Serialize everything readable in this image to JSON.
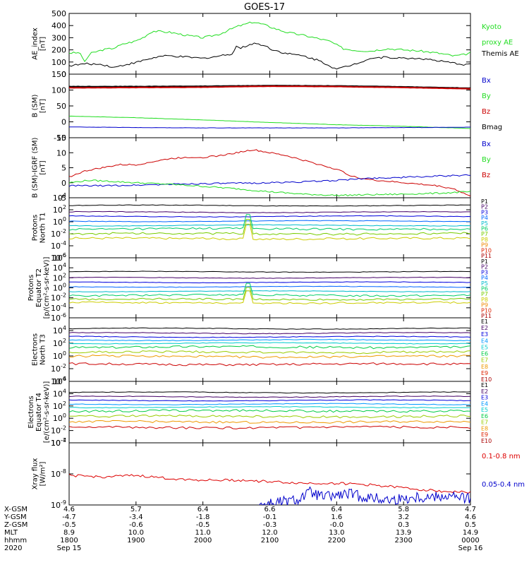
{
  "title": "GOES-17",
  "x_axis": {
    "rows": [
      {
        "label": "X-GSM",
        "values": [
          "4.6",
          "5.7",
          "6.4",
          "6.6",
          "6.4",
          "5.8",
          "4.7"
        ]
      },
      {
        "label": "Y-GSM",
        "values": [
          "-4.7",
          "-3.4",
          "-1.8",
          "-0.1",
          "1.6",
          "3.2",
          "4.6"
        ]
      },
      {
        "label": "Z-GSM",
        "values": [
          "-0.5",
          "-0.6",
          "-0.5",
          "-0.3",
          "-0.0",
          "0.3",
          "0.5"
        ]
      },
      {
        "label": "MLT",
        "values": [
          "8.9",
          "10.0",
          "11.0",
          "12.0",
          "13.0",
          "13.9",
          "14.9"
        ]
      },
      {
        "label": "hhmm",
        "values": [
          "1800",
          "1900",
          "2000",
          "2100",
          "2200",
          "2300",
          "0000"
        ]
      },
      {
        "label": "2020",
        "values": [
          "Sep 15",
          "",
          "",
          "",
          "",
          "",
          "Sep 16"
        ]
      }
    ]
  },
  "panels": [
    {
      "id": "ae",
      "ylabel": [
        "AE_index",
        "[nT]"
      ],
      "scale": "linear",
      "ylim": [
        0,
        500
      ],
      "ticks": [
        "0",
        "100",
        "200",
        "300",
        "400",
        "500"
      ],
      "tick_values": [
        0,
        100,
        200,
        300,
        400,
        500
      ],
      "legend": [
        {
          "text": "Kyoto",
          "color": "#22dd22"
        },
        {
          "text": "proxy AE",
          "color": "#22dd22"
        },
        {
          "text": "Themis AE",
          "color": "#000000"
        }
      ],
      "series": [
        {
          "name": "Kyoto proxy AE",
          "color": "#22dd22",
          "x": [
            0,
            0.14,
            0.17,
            0.22,
            0.32,
            0.5,
            0.67,
            0.82,
            0.98,
            1.1,
            1.25,
            1.5,
            1.75,
            2.0,
            2.25,
            2.5,
            2.75,
            2.9,
            3.05,
            3.25,
            3.5,
            3.75,
            3.9,
            4.1,
            4.3,
            4.5,
            4.75,
            5.0,
            5.25,
            5.5,
            5.75,
            5.9,
            6.0
          ],
          "y": [
            175,
            175,
            175,
            95,
            170,
            200,
            215,
            250,
            270,
            300,
            355,
            345,
            320,
            300,
            330,
            390,
            430,
            410,
            380,
            345,
            320,
            290,
            270,
            210,
            195,
            190,
            210,
            200,
            190,
            175,
            150,
            160,
            175
          ]
        },
        {
          "name": "Themis AE",
          "color": "#000000",
          "x": [
            0,
            0.25,
            0.5,
            0.67,
            0.85,
            1.0,
            1.15,
            1.35,
            1.5,
            1.75,
            2.0,
            2.25,
            2.45,
            2.5,
            2.55,
            2.75,
            2.9,
            3.05,
            3.25,
            3.5,
            3.75,
            4.0,
            4.25,
            4.5,
            4.75,
            5.0,
            5.25,
            5.5,
            5.75,
            5.9,
            6.0
          ],
          "y": [
            70,
            85,
            80,
            55,
            80,
            95,
            120,
            145,
            150,
            140,
            130,
            150,
            170,
            235,
            210,
            255,
            240,
            200,
            170,
            150,
            110,
            40,
            80,
            130,
            140,
            130,
            130,
            110,
            90,
            80,
            85
          ]
        }
      ]
    },
    {
      "id": "bsm",
      "ylabel": [
        "B (SM)",
        "[nT]"
      ],
      "scale": "linear",
      "ylim": [
        -50,
        150
      ],
      "ticks": [
        "-50",
        "0",
        "50",
        "100",
        "150"
      ],
      "tick_values": [
        -50,
        0,
        50,
        100,
        150
      ],
      "legend": [
        {
          "text": "Bx",
          "color": "#0000cc"
        },
        {
          "text": "By",
          "color": "#22dd22"
        },
        {
          "text": "Bz",
          "color": "#cc0000"
        },
        {
          "text": "Bmag",
          "color": "#000000"
        }
      ],
      "series": [
        {
          "name": "Bmag",
          "color": "#000000",
          "x": [
            0,
            1,
            2,
            3,
            4,
            5,
            6
          ],
          "y": [
            111,
            111,
            112,
            114,
            113,
            110,
            106
          ]
        },
        {
          "name": "Bz",
          "color": "#cc0000",
          "x": [
            0,
            1,
            2,
            3,
            4,
            5,
            6
          ],
          "y": [
            107,
            108,
            109,
            112,
            111,
            108,
            104
          ]
        },
        {
          "name": "By",
          "color": "#22dd22",
          "x": [
            0,
            1,
            2,
            3,
            4,
            5,
            6
          ],
          "y": [
            18,
            13,
            6,
            -2,
            -9,
            -14,
            -21
          ]
        },
        {
          "name": "Bx",
          "color": "#0000cc",
          "x": [
            0,
            1,
            2,
            3,
            4,
            5,
            6
          ],
          "y": [
            -16,
            -18,
            -19,
            -19,
            -19,
            -18,
            -17
          ]
        }
      ]
    },
    {
      "id": "dbsm",
      "ylabel": [
        "B (SM)-IGRF (SM)",
        "[nT]"
      ],
      "scale": "linear",
      "ylim": [
        -5,
        15
      ],
      "ticks": [
        "-5",
        "0",
        "5",
        "10",
        "15"
      ],
      "tick_values": [
        -5,
        0,
        5,
        10,
        15
      ],
      "legend": [
        {
          "text": "Bx",
          "color": "#0000cc"
        },
        {
          "text": "By",
          "color": "#22dd22"
        },
        {
          "text": "Bz",
          "color": "#cc0000"
        }
      ],
      "series": [
        {
          "name": "Bz",
          "color": "#cc0000",
          "x": [
            0,
            0.25,
            0.5,
            0.75,
            1.0,
            1.25,
            1.5,
            1.75,
            2.0,
            2.25,
            2.5,
            2.75,
            3.0,
            3.25,
            3.5,
            3.75,
            4.0,
            4.25,
            4.5,
            4.75,
            5.0,
            5.25,
            5.5,
            5.75,
            6.0
          ],
          "y": [
            2,
            4,
            5,
            6,
            6,
            7,
            8,
            8.5,
            8.5,
            9,
            10,
            11,
            10,
            9,
            7.5,
            6,
            4.5,
            2,
            1,
            0.5,
            0,
            -0.5,
            -1,
            -2,
            -4.5
          ]
        },
        {
          "name": "Bx",
          "color": "#0000cc",
          "x": [
            0,
            0.5,
            1,
            1.5,
            2,
            2.5,
            3,
            3.5,
            4,
            4.5,
            5,
            5.5,
            6
          ],
          "y": [
            -1,
            -1,
            -0.8,
            -0.5,
            -0.3,
            -0.2,
            0,
            0.3,
            0.8,
            1.5,
            1.8,
            2.2,
            2.5
          ]
        },
        {
          "name": "By",
          "color": "#22dd22",
          "x": [
            0,
            0.3,
            0.6,
            1,
            1.5,
            2,
            2.5,
            3,
            3.5,
            4,
            4.5,
            5,
            5.5,
            6
          ],
          "y": [
            0,
            0.8,
            0.5,
            0,
            -0.5,
            -1.2,
            -2,
            -3,
            -3.8,
            -4.2,
            -4,
            -3.8,
            -3.5,
            -3
          ]
        }
      ]
    },
    {
      "id": "p_t1",
      "ylabel": [
        "Protons",
        "North T1"
      ],
      "scale": "log",
      "ylim": [
        -6,
        4
      ],
      "ticks": [
        "10^-6",
        "10^-4",
        "10^-2",
        "10^0",
        "10^2",
        "10^4"
      ],
      "tick_values": [
        -6,
        -4,
        -2,
        0,
        2,
        4
      ],
      "legend": [
        {
          "text": "P1",
          "color": "#000000"
        },
        {
          "text": "P2",
          "color": "#440066"
        },
        {
          "text": "P3",
          "color": "#0000dd"
        },
        {
          "text": "P4",
          "color": "#0066ff"
        },
        {
          "text": "P5",
          "color": "#00bbcc"
        },
        {
          "text": "P6",
          "color": "#00cc66"
        },
        {
          "text": "P7",
          "color": "#77cc00"
        },
        {
          "text": "P8",
          "color": "#cccc00"
        },
        {
          "text": "P9",
          "color": "#ee8800"
        },
        {
          "text": "P10",
          "color": "#dd2200"
        },
        {
          "text": "P11",
          "color": "#aa0000"
        }
      ],
      "levels": [
        2.7,
        1.6,
        0.9,
        0.1,
        -0.6,
        -1.2,
        -2.0,
        -2.8
      ],
      "colors": [
        "#000000",
        "#440066",
        "#0000dd",
        "#0066ff",
        "#00bbcc",
        "#00cc66",
        "#77cc00",
        "#cccc00"
      ]
    },
    {
      "id": "p_t2",
      "ylabel": [
        "Protons",
        "Equator T2",
        "[p/(cm²-s-sr-keV)]"
      ],
      "scale": "log",
      "ylim": [
        -6,
        6
      ],
      "ticks": [
        "10^-6",
        "10^-4",
        "10^-2",
        "10^0",
        "10^2",
        "10^4",
        "10^6"
      ],
      "tick_values": [
        -6,
        -4,
        -2,
        0,
        2,
        4,
        6
      ],
      "legend": [
        {
          "text": "P1",
          "color": "#000000"
        },
        {
          "text": "P2",
          "color": "#440066"
        },
        {
          "text": "P3",
          "color": "#0000dd"
        },
        {
          "text": "P4",
          "color": "#0066ff"
        },
        {
          "text": "P5",
          "color": "#00bbcc"
        },
        {
          "text": "P6",
          "color": "#00cc66"
        },
        {
          "text": "P7",
          "color": "#77cc00"
        },
        {
          "text": "P8",
          "color": "#cccc00"
        },
        {
          "text": "P9",
          "color": "#ee8800"
        },
        {
          "text": "P10",
          "color": "#dd2200"
        },
        {
          "text": "P11",
          "color": "#aa0000"
        }
      ],
      "levels": [
        3.2,
        2.0,
        1.1,
        0.2,
        -0.7,
        -1.5,
        -2.3,
        -3.0
      ],
      "colors": [
        "#000000",
        "#440066",
        "#0000dd",
        "#0066ff",
        "#00bbcc",
        "#00cc66",
        "#77cc00",
        "#cccc00"
      ]
    },
    {
      "id": "e_t3",
      "ylabel": [
        "Electrons",
        "North T3"
      ],
      "scale": "log",
      "ylim": [
        -4,
        6
      ],
      "ticks": [
        "10^-4",
        "10^-2",
        "10^0",
        "10^2",
        "10^4"
      ],
      "tick_values": [
        -4,
        -2,
        0,
        2,
        4
      ],
      "legend": [
        {
          "text": "E1",
          "color": "#000000"
        },
        {
          "text": "E2",
          "color": "#440066"
        },
        {
          "text": "E3",
          "color": "#0000dd"
        },
        {
          "text": "E4",
          "color": "#0099ff"
        },
        {
          "text": "E5",
          "color": "#00cccc"
        },
        {
          "text": "E6",
          "color": "#00cc44"
        },
        {
          "text": "E7",
          "color": "#99cc00"
        },
        {
          "text": "E8",
          "color": "#ee9900"
        },
        {
          "text": "E9",
          "color": "#dd2200"
        },
        {
          "text": "E10",
          "color": "#aa0000"
        }
      ],
      "levels": [
        4.3,
        3.6,
        3.0,
        2.5,
        2.0,
        1.4,
        0.6,
        -0.1,
        -1.3
      ],
      "colors": [
        "#000000",
        "#440066",
        "#0000dd",
        "#0099ff",
        "#00cccc",
        "#00cc44",
        "#99cc00",
        "#ee9900",
        "#cc0000"
      ]
    },
    {
      "id": "e_t4",
      "ylabel": [
        "Electrons",
        "Equator T4",
        "[e/(cm²-s-sr-keV)]"
      ],
      "scale": "log",
      "ylim": [
        -4,
        6
      ],
      "ticks": [
        "10^-4",
        "10^-2",
        "10^0",
        "10^2",
        "10^4",
        "10^6"
      ],
      "tick_values": [
        -4,
        -2,
        0,
        2,
        4,
        6
      ],
      "legend": [
        {
          "text": "E1",
          "color": "#000000"
        },
        {
          "text": "E2",
          "color": "#440066"
        },
        {
          "text": "E3",
          "color": "#0000dd"
        },
        {
          "text": "E4",
          "color": "#0099ff"
        },
        {
          "text": "E5",
          "color": "#00cccc"
        },
        {
          "text": "E6",
          "color": "#00cc44"
        },
        {
          "text": "E7",
          "color": "#99cc00"
        },
        {
          "text": "E8",
          "color": "#ee9900"
        },
        {
          "text": "E9",
          "color": "#dd2200"
        },
        {
          "text": "E10",
          "color": "#aa0000"
        }
      ],
      "levels": [
        4.2,
        3.5,
        2.9,
        2.3,
        1.8,
        1.2,
        0.3,
        -0.6,
        -1.5
      ],
      "colors": [
        "#000000",
        "#440066",
        "#0000dd",
        "#0099ff",
        "#00cccc",
        "#00cc44",
        "#99cc00",
        "#ee9900",
        "#cc0000"
      ]
    },
    {
      "id": "xray",
      "ylabel": [
        "Xray flux",
        "[W/m²]"
      ],
      "scale": "log",
      "ylim": [
        -9,
        -7
      ],
      "ticks": [
        "10^-9",
        "10^-8",
        "10^-7"
      ],
      "tick_values": [
        -9,
        -8,
        -7
      ],
      "legend": [
        {
          "text": "0.1-0.8 nm",
          "color": "#dd0000"
        },
        {
          "text": "0.05-0.4 nm",
          "color": "#0000cc"
        }
      ],
      "series": [
        {
          "name": "0.1-0.8 nm",
          "color": "#dd0000",
          "x": [
            0,
            0.5,
            1.0,
            1.5,
            2.0,
            2.5,
            3.0,
            3.5,
            4.0,
            4.5,
            5.0,
            5.5,
            6.0
          ],
          "y": [
            -8.05,
            -8.1,
            -8.05,
            -8.15,
            -8.2,
            -8.2,
            -8.25,
            -8.3,
            -8.3,
            -8.35,
            -8.45,
            -8.55,
            -8.6
          ]
        },
        {
          "name": "0.05-0.4 nm",
          "color": "#0000cc",
          "x": [
            2.8,
            3.0,
            3.2,
            3.4,
            3.6,
            3.8,
            4.0,
            4.2,
            4.4,
            4.6,
            4.8,
            5.0,
            5.2,
            5.4,
            5.6,
            5.8,
            6.0
          ],
          "y": [
            -9.0,
            -8.95,
            -8.9,
            -8.85,
            -8.6,
            -8.75,
            -8.7,
            -8.65,
            -8.75,
            -8.8,
            -8.85,
            -8.8,
            -8.75,
            -8.75,
            -8.7,
            -8.75,
            -8.8
          ]
        }
      ]
    }
  ]
}
